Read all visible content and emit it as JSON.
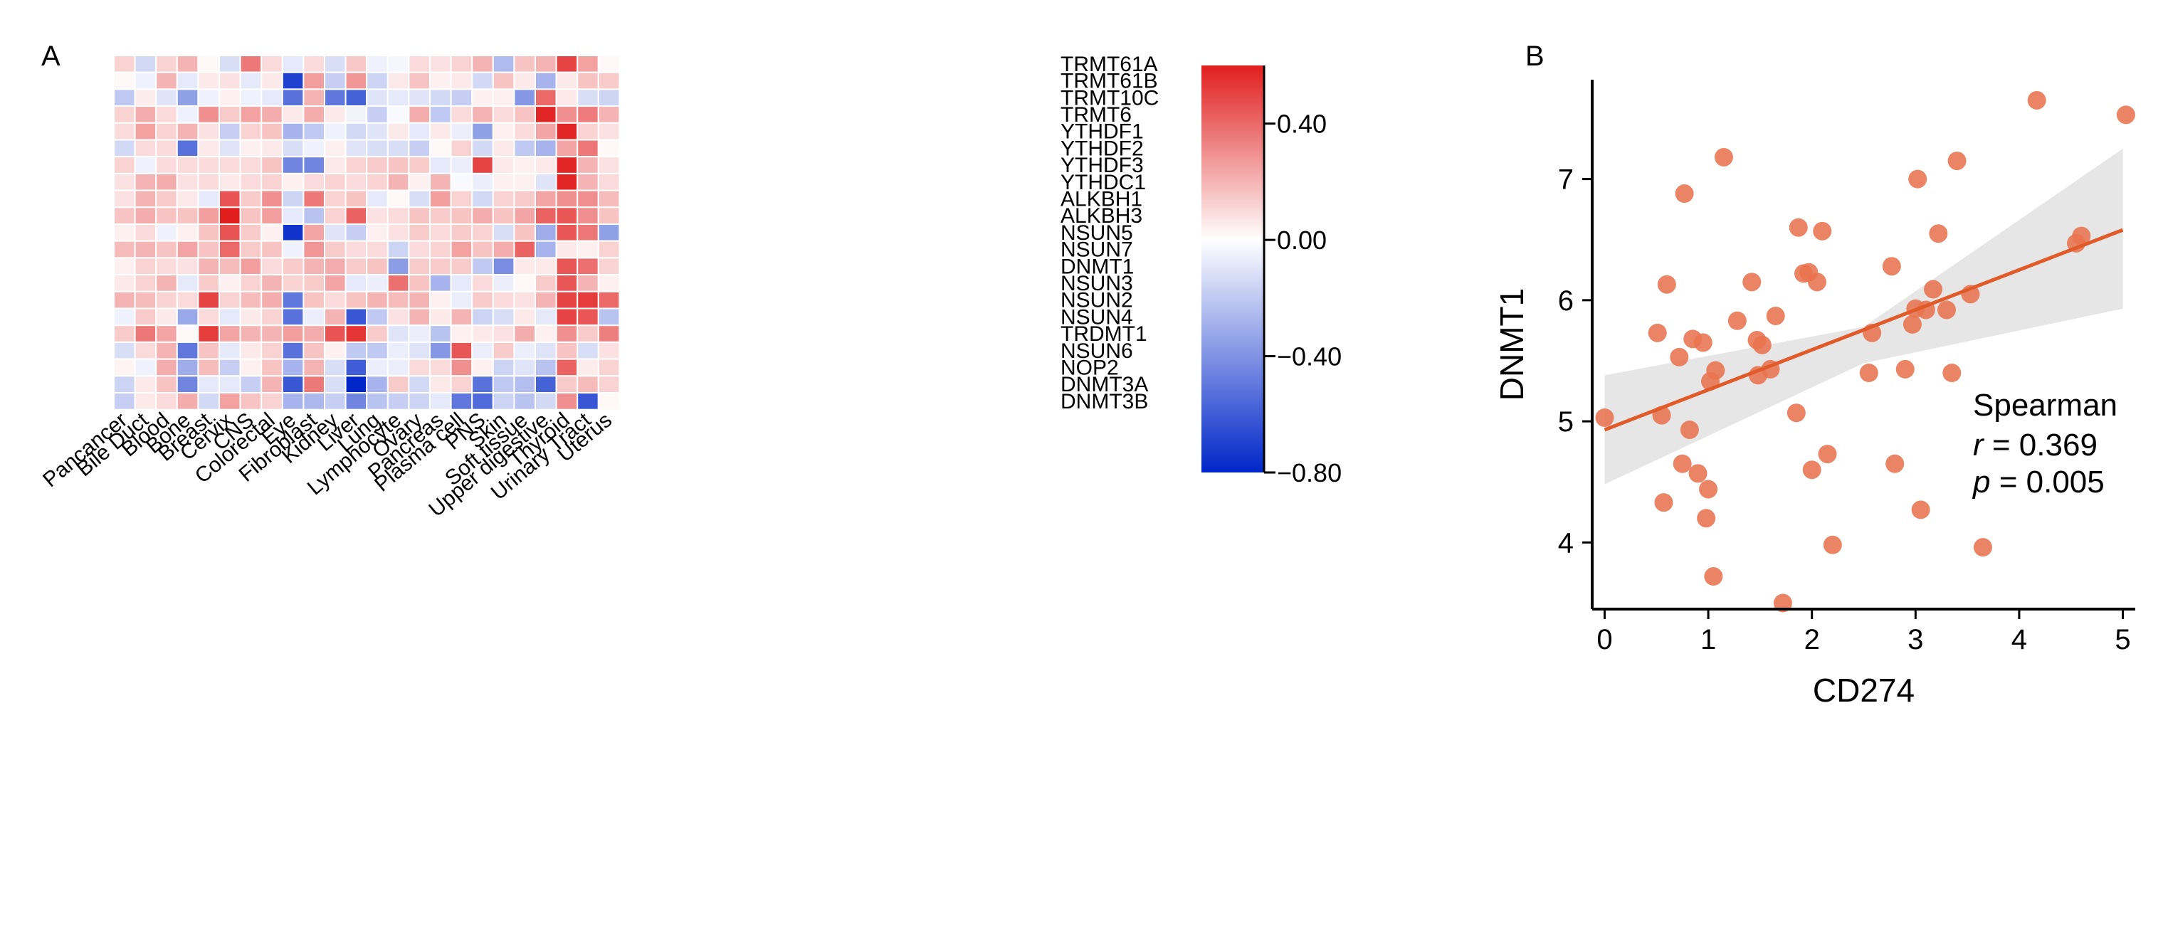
{
  "panels": {
    "a_label": "A",
    "b_label": "B"
  },
  "chart_data": [
    {
      "type": "heatmap",
      "title": "",
      "rows": [
        "TRMT61A",
        "TRMT61B",
        "TRMT10C",
        "TRMT6",
        "YTHDF1",
        "YTHDF2",
        "YTHDF3",
        "YTHDC1",
        "ALKBH1",
        "ALKBH3",
        "NSUN5",
        "NSUN7",
        "DNMT1",
        "NSUN3",
        "NSUN2",
        "NSUN4",
        "TRDMT1",
        "NSUN6",
        "NOP2",
        "DNMT3A",
        "DNMT3B"
      ],
      "columns": [
        "Pancancer",
        "Bile Duct",
        "Blood",
        "Bone",
        "Breast",
        "Cervix",
        "CNS",
        "Colorectal",
        "Eye",
        "Fibroblast",
        "Kidney",
        "Liver",
        "Lung",
        "Lymphocyte",
        "Ovary",
        "Pancreas",
        "Plasma cell",
        "PNS",
        "Skin",
        "Soft tissue",
        "Upper digestive",
        "Thyroid",
        "Urinary Tract",
        "Uterus"
      ],
      "values": [
        [
          0.12,
          -0.14,
          0.12,
          0.2,
          0.02,
          -0.12,
          0.36,
          0.1,
          -0.08,
          0.1,
          -0.12,
          0.15,
          -0.05,
          -0.03,
          0.1,
          0.08,
          0.12,
          0.2,
          -0.25,
          0.16,
          0.2,
          0.5,
          0.25,
          0.02
        ],
        [
          0.02,
          -0.05,
          0.2,
          -0.08,
          0.06,
          0.08,
          -0.08,
          0.06,
          -0.7,
          0.26,
          -0.18,
          0.28,
          -0.16,
          0.06,
          0.16,
          0.04,
          0.06,
          -0.14,
          0.16,
          0.06,
          -0.28,
          0.06,
          0.16,
          0.14
        ],
        [
          -0.2,
          0.05,
          -0.1,
          -0.35,
          -0.05,
          0.04,
          -0.05,
          -0.08,
          -0.52,
          0.2,
          -0.5,
          -0.58,
          -0.1,
          -0.08,
          -0.1,
          -0.14,
          -0.18,
          0.04,
          0.04,
          -0.38,
          0.4,
          0.06,
          -0.12,
          -0.16
        ],
        [
          0.12,
          0.22,
          0.1,
          -0.05,
          0.3,
          0.14,
          0.25,
          0.22,
          0.06,
          0.22,
          0.06,
          -0.04,
          -0.18,
          -0.02,
          0.22,
          -0.2,
          0.1,
          0.2,
          0.1,
          0.16,
          0.58,
          0.3,
          0.35,
          0.2
        ],
        [
          0.1,
          0.25,
          0.12,
          0.2,
          0.08,
          -0.18,
          0.12,
          0.16,
          -0.28,
          -0.2,
          -0.05,
          -0.14,
          -0.1,
          0.06,
          -0.08,
          0.06,
          -0.06,
          -0.35,
          0.04,
          0.1,
          0.24,
          0.58,
          0.12,
          0.08
        ],
        [
          -0.14,
          0.1,
          0.1,
          -0.52,
          0.06,
          -0.1,
          0.04,
          0.06,
          -0.12,
          -0.05,
          0.04,
          -0.1,
          -0.12,
          -0.12,
          -0.18,
          0.02,
          0.12,
          -0.14,
          0.06,
          -0.2,
          -0.28,
          0.24,
          0.36,
          0.02
        ],
        [
          0.12,
          -0.05,
          0.1,
          0.1,
          0.1,
          0.1,
          0.1,
          0.16,
          -0.45,
          -0.45,
          0.06,
          0.12,
          0.14,
          0.16,
          0.14,
          -0.08,
          -0.06,
          0.5,
          0.06,
          0.04,
          0.06,
          0.58,
          0.2,
          0.08
        ],
        [
          0.08,
          0.2,
          0.22,
          0.08,
          0.1,
          0.06,
          0.1,
          0.12,
          0.04,
          0.1,
          0.12,
          0.1,
          0.12,
          0.2,
          0.04,
          0.2,
          -0.02,
          -0.06,
          0.04,
          0.04,
          -0.1,
          0.58,
          0.2,
          0.1
        ],
        [
          0.08,
          0.2,
          0.14,
          0.06,
          -0.08,
          0.46,
          0.14,
          0.3,
          -0.16,
          0.36,
          0.12,
          0.16,
          -0.08,
          0.02,
          -0.12,
          0.26,
          0.12,
          -0.14,
          0.12,
          0.14,
          0.24,
          0.3,
          0.3,
          0.18
        ],
        [
          0.16,
          0.22,
          0.16,
          0.16,
          0.26,
          0.62,
          0.16,
          0.26,
          -0.08,
          -0.22,
          0.12,
          0.42,
          0.08,
          0.1,
          0.16,
          0.14,
          0.16,
          0.22,
          0.16,
          0.24,
          0.42,
          0.45,
          0.3,
          0.16
        ],
        [
          0.04,
          0.1,
          -0.05,
          0.04,
          0.16,
          0.46,
          0.14,
          0.04,
          -0.75,
          0.24,
          -0.1,
          -0.18,
          0.04,
          0.08,
          0.14,
          0.1,
          0.14,
          0.12,
          -0.12,
          0.16,
          -0.3,
          0.45,
          0.36,
          -0.35
        ],
        [
          0.18,
          0.2,
          0.16,
          0.24,
          0.16,
          0.4,
          0.14,
          0.16,
          -0.05,
          0.28,
          0.14,
          0.1,
          0.1,
          -0.16,
          0.1,
          0.12,
          0.25,
          0.16,
          0.22,
          0.42,
          -0.28,
          0.06,
          0.04,
          0.12
        ],
        [
          0.04,
          0.12,
          0.1,
          0.08,
          0.2,
          0.18,
          0.26,
          0.1,
          0.14,
          0.2,
          0.22,
          0.14,
          0.16,
          -0.36,
          0.14,
          0.14,
          0.14,
          -0.2,
          -0.42,
          0.06,
          0.06,
          0.45,
          0.38,
          0.12
        ],
        [
          0.06,
          0.12,
          0.2,
          -0.08,
          0.14,
          0.04,
          0.12,
          0.2,
          0.12,
          0.14,
          0.24,
          -0.08,
          -0.06,
          0.38,
          0.16,
          -0.28,
          -0.08,
          0.1,
          -0.06,
          0.02,
          0.14,
          0.45,
          0.2,
          0.04
        ],
        [
          0.2,
          0.18,
          0.12,
          0.1,
          0.5,
          0.12,
          0.18,
          0.22,
          -0.5,
          0.16,
          0.1,
          0.16,
          0.2,
          0.18,
          0.2,
          0.04,
          -0.06,
          0.14,
          0.1,
          0.08,
          0.2,
          0.5,
          0.52,
          0.4
        ],
        [
          -0.05,
          0.14,
          0.06,
          -0.32,
          0.1,
          -0.08,
          0.06,
          0.12,
          -0.52,
          -0.06,
          0.2,
          -0.62,
          -0.2,
          0.08,
          0.2,
          0.06,
          0.2,
          -0.16,
          -0.12,
          0.06,
          -0.08,
          0.5,
          0.45,
          -0.22
        ],
        [
          0.14,
          0.36,
          0.24,
          0.02,
          0.52,
          0.24,
          0.2,
          0.2,
          0.26,
          0.22,
          0.46,
          0.54,
          0.14,
          -0.1,
          -0.06,
          -0.22,
          0.04,
          0.06,
          0.08,
          0.22,
          0.04,
          0.3,
          0.14,
          0.34
        ],
        [
          -0.12,
          0.1,
          0.2,
          -0.5,
          0.16,
          -0.08,
          0.06,
          0.12,
          -0.52,
          0.16,
          0.04,
          -0.2,
          -0.2,
          -0.06,
          -0.1,
          -0.38,
          0.45,
          -0.06,
          0.14,
          -0.06,
          -0.1,
          0.16,
          -0.12,
          0.08
        ],
        [
          0.03,
          -0.05,
          0.22,
          -0.3,
          0.18,
          -0.18,
          0.04,
          0.16,
          -0.28,
          0.2,
          -0.12,
          -0.6,
          -0.06,
          -0.06,
          0.1,
          0.1,
          0.3,
          0.04,
          -0.16,
          -0.1,
          -0.22,
          0.42,
          0.05,
          0.12
        ],
        [
          -0.16,
          0.06,
          0.16,
          -0.45,
          -0.08,
          -0.08,
          -0.18,
          0.2,
          -0.62,
          0.36,
          -0.12,
          -0.8,
          -0.28,
          0.14,
          -0.14,
          0.06,
          0.12,
          -0.52,
          -0.2,
          -0.24,
          -0.58,
          0.14,
          0.18,
          0.12
        ],
        [
          -0.18,
          0.06,
          0.1,
          0.22,
          -0.14,
          0.25,
          0.16,
          0.12,
          -0.28,
          -0.26,
          -0.18,
          -0.45,
          -0.22,
          -0.18,
          -0.16,
          -0.08,
          -0.5,
          -0.55,
          -0.16,
          -0.22,
          -0.14,
          0.3,
          -0.62,
          0.02
        ]
      ],
      "colorbar": {
        "min": -0.8,
        "max": 0.6,
        "ticks": [
          0.4,
          0.0,
          -0.4,
          -0.8
        ],
        "tick_labels": [
          "0.40",
          "0.00",
          "−0.40",
          "−0.80"
        ],
        "colors": {
          "low": "#0026c8",
          "mid": "#ffffff",
          "high": "#e11e1e"
        }
      }
    },
    {
      "type": "scatter",
      "title": "",
      "xlabel": "CD274",
      "ylabel": "DNMT1",
      "xlim": [
        -0.12,
        5.12
      ],
      "ylim": [
        3.45,
        7.82
      ],
      "xticks": [
        0,
        1,
        2,
        3,
        4,
        5
      ],
      "xtick_labels": [
        "0",
        "1",
        "2",
        "3",
        "4",
        "5"
      ],
      "yticks": [
        4,
        5,
        6,
        7
      ],
      "ytick_labels": [
        "4",
        "5",
        "6",
        "7"
      ],
      "x": [
        0.0,
        0.51,
        0.55,
        0.6,
        0.57,
        0.72,
        0.75,
        0.77,
        0.82,
        0.85,
        0.9,
        0.95,
        0.98,
        1.0,
        1.02,
        1.05,
        1.07,
        1.15,
        1.28,
        1.42,
        1.47,
        1.48,
        1.52,
        1.6,
        1.65,
        1.72,
        1.85,
        1.87,
        1.92,
        1.97,
        2.0,
        2.05,
        2.1,
        2.15,
        2.2,
        2.55,
        2.58,
        2.77,
        2.8,
        2.9,
        2.97,
        3.0,
        3.02,
        3.05,
        3.1,
        3.17,
        3.22,
        3.3,
        3.35,
        3.4,
        3.53,
        3.65,
        4.17,
        4.55,
        4.6,
        5.03
      ],
      "y": [
        5.03,
        5.73,
        5.05,
        6.13,
        4.33,
        5.53,
        4.65,
        6.88,
        4.93,
        5.68,
        4.57,
        5.65,
        4.2,
        4.44,
        5.33,
        3.72,
        5.42,
        7.18,
        5.83,
        6.15,
        5.67,
        5.38,
        5.63,
        5.43,
        5.87,
        3.5,
        5.07,
        6.6,
        6.22,
        6.23,
        4.6,
        6.15,
        6.57,
        4.73,
        3.98,
        5.4,
        5.73,
        6.28,
        4.65,
        5.43,
        5.8,
        5.93,
        7.0,
        4.27,
        5.92,
        6.09,
        6.55,
        5.92,
        5.4,
        7.15,
        6.05,
        3.96,
        7.65,
        6.47,
        6.53,
        7.53
      ],
      "fit": {
        "x": [
          0,
          5
        ],
        "y": [
          4.93,
          6.58
        ],
        "ci_lower": [
          4.48,
          5.93
        ],
        "ci_mid_lower": 5.48,
        "ci_mid_upper": 5.78,
        "ci_upper": [
          5.38,
          7.25
        ]
      },
      "colors": {
        "point": "#e8734f",
        "line": "#e05a2a",
        "band": "#d9d9d9"
      },
      "annotation": {
        "method": "Spearman",
        "r_symbol": "r",
        "r_value": " = 0.369",
        "p_symbol": "p",
        "p_value": " = 0.005"
      }
    }
  ]
}
